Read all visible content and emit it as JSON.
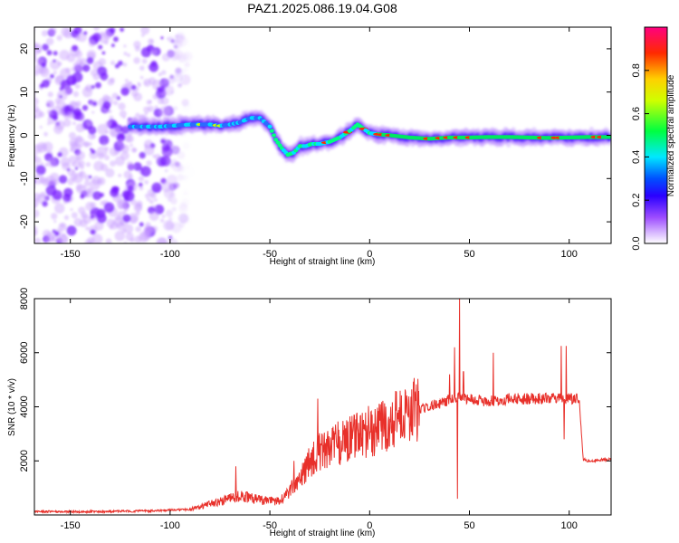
{
  "figure": {
    "title": "PAZ1.2025.086.19.04.G08"
  },
  "chart_data": [
    {
      "type": "heatmap",
      "xlabel": "Height of straight line (km)",
      "ylabel": "Frequency (Hz)",
      "xlim": [
        -168,
        121
      ],
      "ylim": [
        -25,
        25
      ],
      "xticks": [
        -150,
        -100,
        -50,
        0,
        50,
        100
      ],
      "yticks": [
        -20,
        -10,
        0,
        10,
        20
      ],
      "colorbar": {
        "label": "Normalized spectral amplitude",
        "ticks": [
          0.0,
          0.2,
          0.4,
          0.6,
          0.8
        ],
        "tick_labels": [
          "0.0",
          "0.2",
          "0.4",
          "0.6",
          "0.8"
        ],
        "colormap": "rainbow (violet-blue-cyan-green-yellow-red-magenta)",
        "range": [
          0,
          1
        ]
      },
      "ridge": {
        "x": [
          -120,
          -105,
          -90,
          -80,
          -75,
          -70,
          -65,
          -60,
          -55,
          -50,
          -47,
          -44,
          -41,
          -38,
          -35,
          -32,
          -29,
          -25,
          -20,
          -15,
          -10,
          -6,
          -3,
          0,
          5,
          10,
          20,
          30,
          40,
          50,
          60,
          70,
          80,
          90,
          100,
          110,
          120
        ],
        "y": [
          2,
          2,
          2.5,
          2.5,
          2.2,
          2.5,
          3,
          4,
          4,
          2,
          -1,
          -3,
          -4.5,
          -4,
          -2.5,
          -2.5,
          -2,
          -2,
          -1.5,
          -0.5,
          1,
          2.5,
          1.5,
          0.5,
          0.2,
          0,
          -0.5,
          -0.8,
          -0.5,
          -0.5,
          -0.4,
          -0.4,
          -0.5,
          -0.6,
          -0.5,
          -0.4,
          -0.4
        ]
      },
      "noise_region_x": [
        -168,
        -88
      ],
      "grid": false
    },
    {
      "type": "line",
      "xlabel": "Height of straight line (km)",
      "ylabel": "SNR (10 * v/v)",
      "xlim": [
        -168,
        121
      ],
      "ylim": [
        0,
        8000
      ],
      "xticks": [
        -150,
        -100,
        -50,
        0,
        50,
        100
      ],
      "yticks": [
        2000,
        4000,
        6000,
        8000
      ],
      "color": "#e8302a",
      "envelope": {
        "x": [
          -168,
          -140,
          -110,
          -90,
          -85,
          -75,
          -65,
          -55,
          -45,
          -35,
          -30,
          -25,
          -20,
          -10,
          0,
          10,
          20,
          30,
          40,
          45,
          50,
          60,
          70,
          80,
          90,
          95,
          100,
          105,
          107,
          110,
          121
        ],
        "y": [
          120,
          120,
          150,
          200,
          300,
          500,
          700,
          550,
          500,
          1300,
          2000,
          2300,
          2500,
          2800,
          3100,
          3500,
          3800,
          4000,
          4250,
          4350,
          4300,
          4200,
          4300,
          4300,
          4300,
          4300,
          4300,
          4300,
          2050,
          2000,
          2050
        ]
      },
      "spikes": [
        {
          "x": -67,
          "y": 1800
        },
        {
          "x": -38,
          "y": 2000
        },
        {
          "x": -33,
          "y": 1900
        },
        {
          "x": -26,
          "y": 4300
        },
        {
          "x": 3,
          "y": 3600
        },
        {
          "x": 40,
          "y": 5200
        },
        {
          "x": 42.5,
          "y": 6200
        },
        {
          "x": 44,
          "y": 600
        },
        {
          "x": 45,
          "y": 8000
        },
        {
          "x": 47,
          "y": 5300
        },
        {
          "x": 62,
          "y": 6000
        },
        {
          "x": 96,
          "y": 6250
        },
        {
          "x": 97.5,
          "y": 2800
        },
        {
          "x": 98.5,
          "y": 6250
        }
      ],
      "grid": false
    }
  ]
}
